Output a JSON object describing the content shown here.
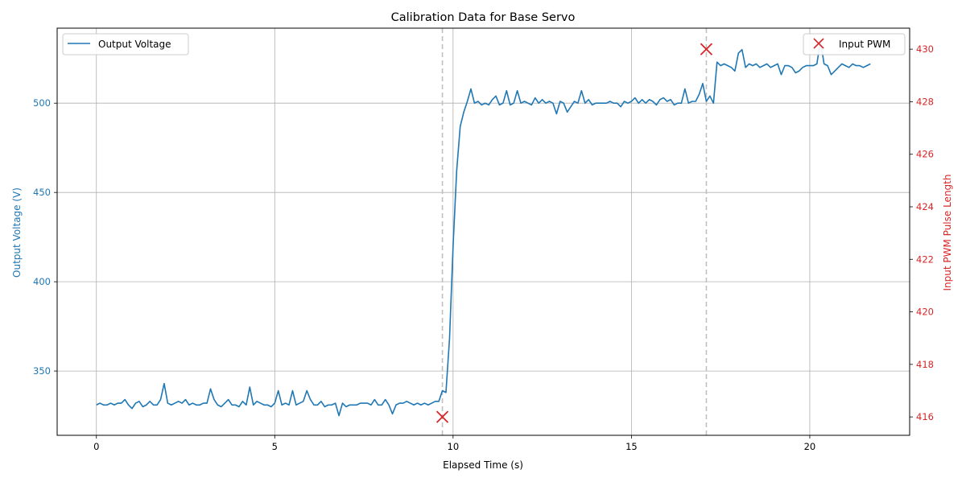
{
  "chart_data": {
    "type": "line",
    "title": "Calibration Data for Base Servo",
    "xlabel": "Elapsed Time (s)",
    "ylabel_left": "Output Voltage (V)",
    "ylabel_right": "Input PWM Pulse Length",
    "xlim": [
      -1.1,
      22.8
    ],
    "ylim_left": [
      314,
      542
    ],
    "ylim_right": [
      415.3,
      430.8
    ],
    "x_ticks": [
      0,
      5,
      10,
      15,
      20
    ],
    "y_ticks_left": [
      350,
      400,
      450,
      500
    ],
    "y_ticks_right": [
      416,
      418,
      420,
      422,
      424,
      426,
      428,
      430
    ],
    "grid": true,
    "legend_left": {
      "position": "top-left",
      "label": "Output Voltage"
    },
    "legend_right": {
      "position": "top-right",
      "label": "Input PWM"
    },
    "colors": {
      "voltage": "#1f77b4",
      "pwm": "#d62728",
      "grid": "#b0b0b0",
      "vline": "#c0c0c0"
    },
    "series": [
      {
        "name": "Output Voltage",
        "axis": "left",
        "x": [
          0.0,
          0.1,
          0.2,
          0.3,
          0.4,
          0.5,
          0.6,
          0.7,
          0.8,
          0.9,
          1.0,
          1.1,
          1.2,
          1.3,
          1.4,
          1.5,
          1.6,
          1.7,
          1.8,
          1.9,
          2.0,
          2.1,
          2.2,
          2.3,
          2.4,
          2.5,
          2.6,
          2.7,
          2.8,
          2.9,
          3.0,
          3.1,
          3.2,
          3.3,
          3.4,
          3.5,
          3.6,
          3.7,
          3.8,
          3.9,
          4.0,
          4.1,
          4.2,
          4.3,
          4.4,
          4.5,
          4.6,
          4.7,
          4.8,
          4.9,
          5.0,
          5.1,
          5.2,
          5.3,
          5.4,
          5.5,
          5.6,
          5.7,
          5.8,
          5.9,
          6.0,
          6.1,
          6.2,
          6.3,
          6.4,
          6.5,
          6.6,
          6.7,
          6.8,
          6.9,
          7.0,
          7.1,
          7.2,
          7.3,
          7.4,
          7.5,
          7.6,
          7.7,
          7.8,
          7.9,
          8.0,
          8.1,
          8.2,
          8.3,
          8.4,
          8.5,
          8.6,
          8.7,
          8.8,
          8.9,
          9.0,
          9.1,
          9.2,
          9.3,
          9.4,
          9.5,
          9.6,
          9.7,
          9.8,
          9.9,
          10.0,
          10.1,
          10.2,
          10.3,
          10.4,
          10.5,
          10.6,
          10.7,
          10.8,
          10.9,
          11.0,
          11.1,
          11.2,
          11.3,
          11.4,
          11.5,
          11.6,
          11.7,
          11.8,
          11.9,
          12.0,
          12.1,
          12.2,
          12.3,
          12.4,
          12.5,
          12.6,
          12.7,
          12.8,
          12.9,
          13.0,
          13.1,
          13.2,
          13.3,
          13.4,
          13.5,
          13.6,
          13.7,
          13.8,
          13.9,
          14.0,
          14.1,
          14.2,
          14.3,
          14.4,
          14.5,
          14.6,
          14.7,
          14.8,
          14.9,
          15.0,
          15.1,
          15.2,
          15.3,
          15.4,
          15.5,
          15.6,
          15.7,
          15.8,
          15.9,
          16.0,
          16.1,
          16.2,
          16.3,
          16.4,
          16.5,
          16.6,
          16.7,
          16.8,
          16.9,
          17.0,
          17.1,
          17.2,
          17.3,
          17.4,
          17.5,
          17.6,
          17.7,
          17.8,
          17.9,
          18.0,
          18.1,
          18.2,
          18.3,
          18.4,
          18.5,
          18.6,
          18.7,
          18.8,
          18.9,
          19.0,
          19.1,
          19.2,
          19.3,
          19.4,
          19.5,
          19.6,
          19.7,
          19.8,
          19.9,
          20.0,
          20.1,
          20.2,
          20.3,
          20.4,
          20.5,
          20.6,
          20.7,
          20.8,
          20.9,
          21.0,
          21.1,
          21.2,
          21.3,
          21.4,
          21.5,
          21.6,
          21.7
        ],
        "y": [
          331,
          332,
          331,
          331,
          332,
          331,
          332,
          332,
          334,
          331,
          329,
          332,
          333,
          330,
          331,
          333,
          331,
          331,
          334,
          343,
          332,
          331,
          332,
          333,
          332,
          334,
          331,
          332,
          331,
          331,
          332,
          332,
          340,
          334,
          331,
          330,
          332,
          334,
          331,
          331,
          330,
          333,
          331,
          341,
          331,
          333,
          332,
          331,
          331,
          330,
          332,
          339,
          331,
          332,
          331,
          339,
          331,
          332,
          333,
          339,
          334,
          331,
          331,
          333,
          330,
          331,
          331,
          332,
          325,
          332,
          330,
          331,
          331,
          331,
          332,
          332,
          332,
          331,
          334,
          331,
          331,
          334,
          331,
          326,
          331,
          332,
          332,
          333,
          332,
          331,
          332,
          331,
          332,
          331,
          332,
          333,
          333,
          339,
          338,
          368,
          420,
          462,
          487,
          495,
          501,
          508,
          500,
          501,
          499,
          500,
          499,
          502,
          504,
          499,
          500,
          507,
          499,
          500,
          507,
          500,
          501,
          500,
          499,
          503,
          500,
          502,
          500,
          501,
          500,
          494,
          501,
          500,
          495,
          498,
          501,
          500,
          507,
          500,
          502,
          499,
          500,
          500,
          500,
          500,
          501,
          500,
          500,
          498,
          501,
          500,
          501,
          503,
          500,
          502,
          500,
          502,
          501,
          499,
          502,
          503,
          501,
          502,
          499,
          500,
          500,
          508,
          500,
          501,
          501,
          505,
          511,
          501,
          504,
          500,
          523,
          521,
          522,
          521,
          520,
          518,
          528,
          530,
          520,
          522,
          521,
          522,
          520,
          521,
          522,
          520,
          521,
          522,
          516,
          521,
          521,
          520,
          517,
          518,
          520,
          521,
          521,
          521,
          522,
          535,
          522,
          521,
          516,
          518,
          520,
          522,
          521,
          520,
          522,
          521,
          521,
          520,
          521,
          522
        ]
      },
      {
        "name": "Input PWM",
        "axis": "right",
        "x": [
          9.7,
          17.1
        ],
        "y": [
          416,
          430
        ]
      }
    ],
    "vlines": [
      9.7,
      17.1
    ]
  }
}
